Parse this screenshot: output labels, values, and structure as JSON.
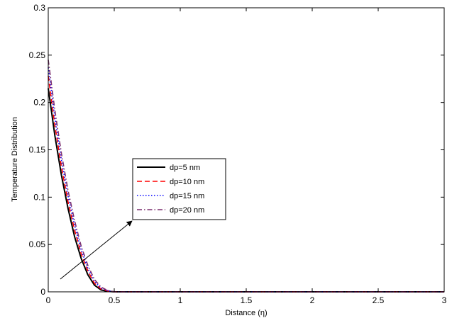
{
  "chart_data": {
    "type": "line",
    "title": "",
    "xlabel": "Distance (η)",
    "ylabel": "Temperature Distribution",
    "xlim": [
      0,
      3
    ],
    "ylim": [
      0,
      0.3
    ],
    "x_ticks": [
      "0",
      "0.5",
      "1",
      "1.5",
      "2",
      "2.5",
      "3"
    ],
    "y_ticks": [
      "0",
      "0.05",
      "0.1",
      "0.15",
      "0.2",
      "0.25",
      "0.3"
    ],
    "grid": false,
    "legend_position": "center",
    "annotation": "arrow pointing toward increasing dp",
    "x": [
      0,
      0.05,
      0.1,
      0.15,
      0.2,
      0.25,
      0.3,
      0.35,
      0.4,
      0.45,
      0.5,
      0.6,
      0.8,
      1.0,
      1.5,
      2.0,
      2.5,
      3.0
    ],
    "series": [
      {
        "name": "dp=5 nm",
        "color": "#000000",
        "dash": "solid",
        "values": [
          0.215,
          0.165,
          0.123,
          0.088,
          0.058,
          0.035,
          0.018,
          0.007,
          0.002,
          0.0005,
          0,
          0,
          0,
          0,
          0,
          0,
          0,
          0
        ]
      },
      {
        "name": "dp=10 nm",
        "color": "#ff0000",
        "dash": "dashed",
        "values": [
          0.228,
          0.176,
          0.132,
          0.095,
          0.065,
          0.04,
          0.022,
          0.009,
          0.003,
          0.001,
          0,
          0,
          0,
          0,
          0,
          0,
          0,
          0
        ]
      },
      {
        "name": "dp=15 nm",
        "color": "#0000ff",
        "dash": "dotted",
        "values": [
          0.237,
          0.184,
          0.139,
          0.101,
          0.07,
          0.044,
          0.025,
          0.011,
          0.004,
          0.0012,
          0,
          0,
          0,
          0,
          0,
          0,
          0,
          0
        ]
      },
      {
        "name": "dp=20 nm",
        "color": "#7b2f6e",
        "dash": "dashdot",
        "values": [
          0.245,
          0.192,
          0.146,
          0.107,
          0.075,
          0.048,
          0.028,
          0.013,
          0.005,
          0.0015,
          0,
          0,
          0,
          0,
          0,
          0,
          0,
          0
        ]
      }
    ]
  }
}
